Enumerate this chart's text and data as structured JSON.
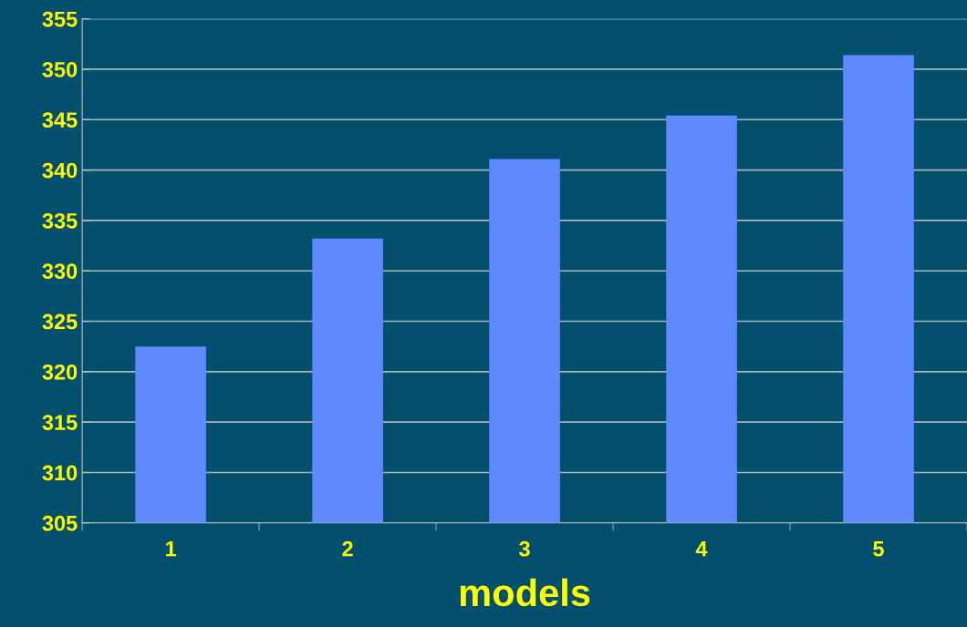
{
  "chart_data": {
    "type": "bar",
    "xlabel": "models",
    "categories": [
      "1",
      "2",
      "3",
      "4",
      "5"
    ],
    "values": [
      322.5,
      333.2,
      341.1,
      345.4,
      351.4
    ],
    "color": "#6088ff",
    "ylim": [
      305,
      355
    ],
    "yticks": [
      305,
      310,
      315,
      320,
      325,
      330,
      335,
      340,
      345,
      350,
      355
    ],
    "grid": "y",
    "legend": false
  }
}
